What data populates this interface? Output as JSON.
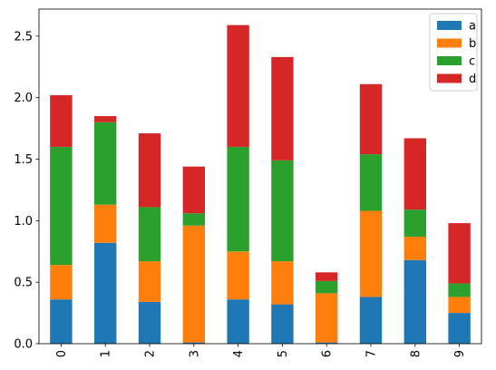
{
  "chart_data": {
    "type": "bar",
    "stacked": true,
    "categories": [
      "0",
      "1",
      "2",
      "3",
      "4",
      "5",
      "6",
      "7",
      "8",
      "9"
    ],
    "series": [
      {
        "name": "a",
        "color": "#1f77b4",
        "values": [
          0.36,
          0.82,
          0.34,
          0.01,
          0.36,
          0.32,
          0.01,
          0.38,
          0.68,
          0.25
        ]
      },
      {
        "name": "b",
        "color": "#ff7f0e",
        "values": [
          0.28,
          0.31,
          0.33,
          0.95,
          0.39,
          0.35,
          0.4,
          0.7,
          0.19,
          0.13
        ]
      },
      {
        "name": "c",
        "color": "#2ca02c",
        "values": [
          0.96,
          0.67,
          0.44,
          0.1,
          0.85,
          0.82,
          0.1,
          0.46,
          0.22,
          0.11
        ]
      },
      {
        "name": "d",
        "color": "#d62728",
        "values": [
          0.42,
          0.05,
          0.6,
          0.38,
          0.99,
          0.84,
          0.07,
          0.57,
          0.58,
          0.49
        ]
      }
    ],
    "yticks": [
      "0.0",
      "0.5",
      "1.0",
      "1.5",
      "2.0",
      "2.5"
    ],
    "ylim": [
      0,
      2.72
    ],
    "xlabel": "",
    "ylabel": "",
    "title": "",
    "grid": false,
    "legend_position": "top-right",
    "xtick_rotation": "vertical"
  }
}
